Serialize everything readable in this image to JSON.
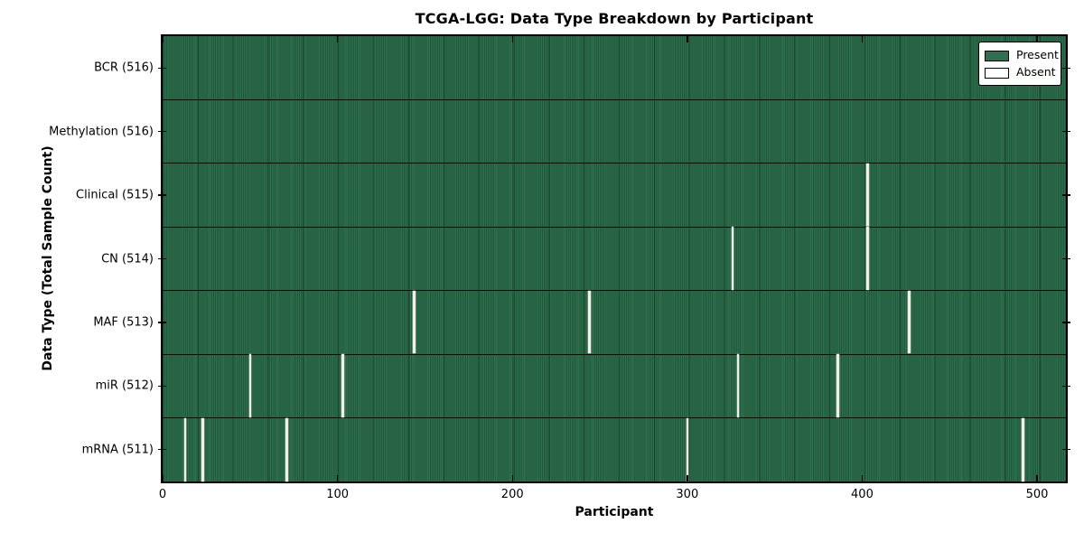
{
  "chart_data": {
    "type": "heatmap",
    "title": "TCGA-LGG: Data Type Breakdown by Participant",
    "xlabel": "Participant",
    "ylabel": "Data Type (Total Sample Count)",
    "x_ticks": [
      0,
      100,
      200,
      300,
      400,
      500
    ],
    "xlim": [
      0,
      516.5
    ],
    "n_participants": 516,
    "grid": false,
    "legend_position": "upper right",
    "legend": [
      {
        "label": "Present",
        "color": "#2e7050"
      },
      {
        "label": "Absent",
        "color": "#ffffff"
      }
    ],
    "rows": [
      {
        "label": "BCR (516)",
        "data_type": "BCR",
        "total": 516,
        "absent_participants": []
      },
      {
        "label": "Methylation (516)",
        "data_type": "Methylation",
        "total": 516,
        "absent_participants": []
      },
      {
        "label": "Clinical (515)",
        "data_type": "Clinical",
        "total": 515,
        "absent_participants": [
          403
        ]
      },
      {
        "label": "CN (514)",
        "data_type": "CN",
        "total": 514,
        "absent_participants": [
          326,
          403
        ]
      },
      {
        "label": "MAF (513)",
        "data_type": "MAF",
        "total": 513,
        "absent_participants": [
          144,
          244,
          427
        ]
      },
      {
        "label": "miR (512)",
        "data_type": "miR",
        "total": 512,
        "absent_participants": [
          50,
          103,
          329,
          386
        ]
      },
      {
        "label": "mRNA (511)",
        "data_type": "mRNA",
        "total": 511,
        "absent_participants": [
          13,
          23,
          71,
          300,
          492
        ]
      }
    ],
    "colors": {
      "present_green": "#2e7050",
      "present_stripe_dark": "#1f5739",
      "absent_white": "#f0efe9",
      "axis_and_borders": "#000000",
      "background": "#ffffff"
    }
  }
}
